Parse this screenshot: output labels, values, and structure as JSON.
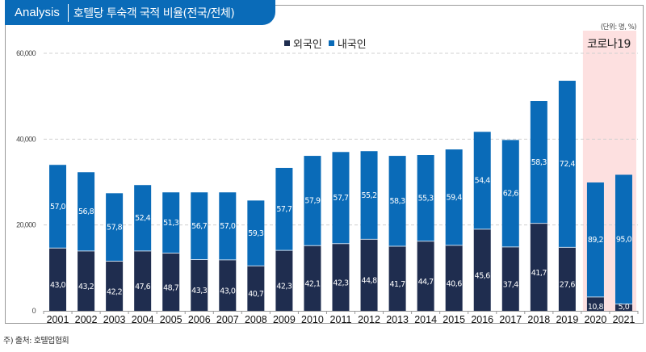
{
  "header": {
    "tag": "Analysis",
    "title": "호텔당 투숙객 국적 비율(전국/전체)"
  },
  "unit_label": "(단위: 명, %)",
  "highlight": {
    "label": "코로나19",
    "years": [
      "2020",
      "2021"
    ],
    "color": "#fde0e0"
  },
  "footnote": "주) 출처: 호텔업협회",
  "colors": {
    "foreign": "#1f2d4f",
    "domestic": "#0a6bb8",
    "header": "#0a6bb8",
    "grid": "#d0d0d0"
  },
  "chart_data": {
    "type": "bar",
    "stacked": true,
    "title": "호텔당 투숙객 국적 비율(전국/전체)",
    "xlabel": "",
    "ylabel": "",
    "ylim": [
      0,
      60000
    ],
    "yticks": [
      0,
      20000,
      40000,
      60000
    ],
    "ytick_labels": [
      "0",
      "20,000",
      "40,000",
      "60,000"
    ],
    "grid": true,
    "legend_position": "top-center",
    "categories": [
      "2001",
      "2002",
      "2003",
      "2004",
      "2005",
      "2006",
      "2007",
      "2008",
      "2009",
      "2010",
      "2011",
      "2012",
      "2013",
      "2014",
      "2015",
      "2016",
      "2017",
      "2018",
      "2019",
      "2020",
      "2021"
    ],
    "totals": [
      34000,
      32300,
      27400,
      29300,
      27600,
      27600,
      27600,
      25700,
      33300,
      36100,
      37000,
      37200,
      36100,
      36300,
      37600,
      41700,
      39800,
      48900,
      53600,
      29900,
      31700
    ],
    "series": [
      {
        "name": "외국인",
        "share_pct": [
          43.0,
          43.2,
          42.2,
          47.6,
          48.7,
          43.3,
          43.0,
          40.7,
          42.3,
          42.1,
          42.3,
          44.8,
          41.7,
          44.7,
          40.6,
          45.6,
          37.4,
          41.7,
          27.6,
          10.8,
          5.0
        ],
        "labels": [
          "43,0",
          "43,2",
          "42,2",
          "47,6",
          "48,7",
          "43,3",
          "43,0",
          "40,7",
          "42,3",
          "42,1",
          "42,3",
          "44,8",
          "41,7",
          "44,7",
          "40,6",
          "45,6",
          "37,4",
          "41,7",
          "27,6",
          "10,8",
          "5,0"
        ]
      },
      {
        "name": "내국인",
        "share_pct": [
          57.0,
          56.8,
          57.8,
          52.4,
          51.3,
          56.7,
          57.0,
          59.3,
          57.7,
          57.9,
          57.7,
          55.2,
          58.3,
          55.3,
          59.4,
          54.4,
          62.6,
          58.3,
          72.4,
          89.2,
          95.0
        ],
        "labels": [
          "57,0",
          "56,8",
          "57,8",
          "52,4",
          "51,3",
          "56,7",
          "57,0",
          "59,3",
          "57,7",
          "57,9",
          "57,7",
          "55,2",
          "58,3",
          "55,3",
          "59,4",
          "54,4",
          "62,6",
          "58,3",
          "72,4",
          "89,2",
          "95,0"
        ]
      }
    ]
  }
}
